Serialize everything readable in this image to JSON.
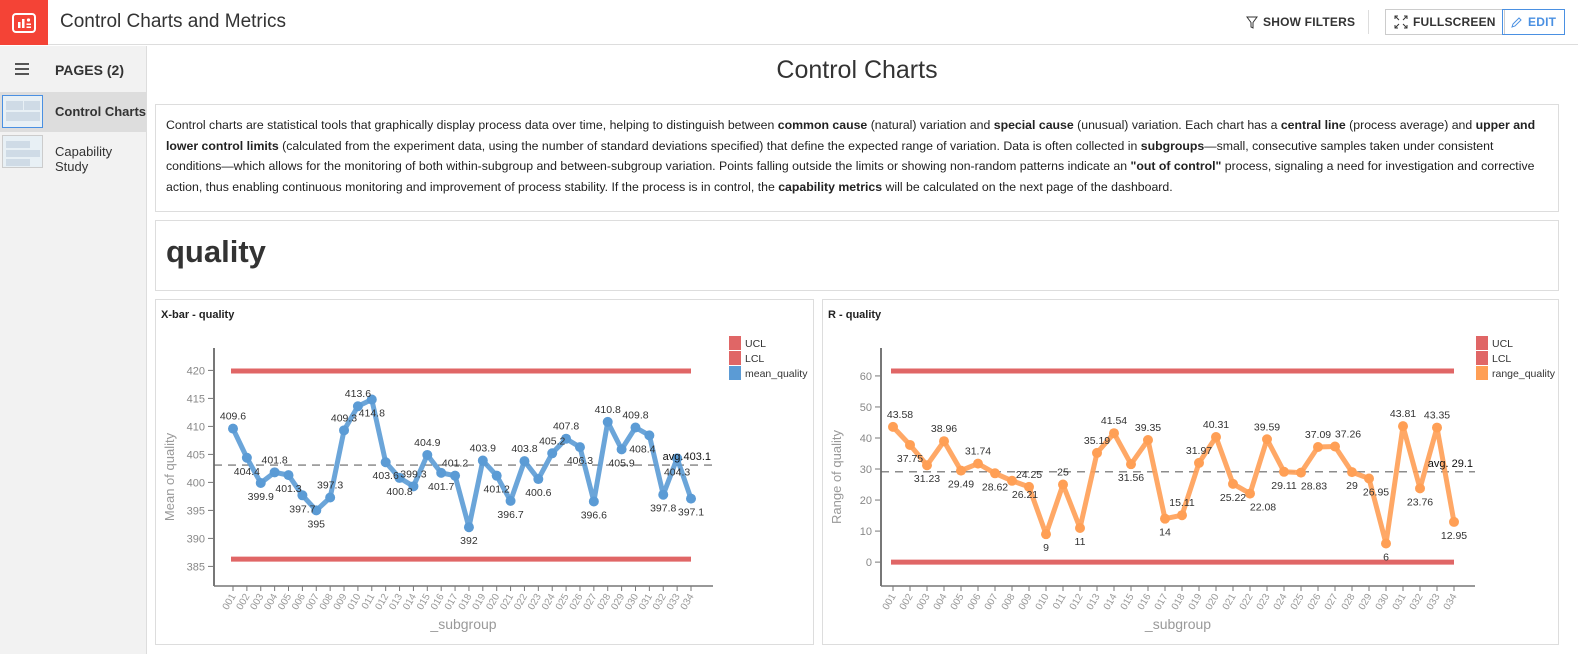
{
  "app": {
    "title": "Control Charts and Metrics",
    "show_filters": "SHOW FILTERS",
    "fullscreen": "FULLSCREEN",
    "edit": "EDIT",
    "brand_color": "#f44336",
    "accent_color": "#4a90e2"
  },
  "sidebar": {
    "header": "PAGES (2)",
    "pages": [
      {
        "label": "Control Charts",
        "active": true
      },
      {
        "label": "Capability Study",
        "active": false
      }
    ]
  },
  "page": {
    "title": "Control Charts",
    "section_title": "quality"
  },
  "description": [
    {
      "t": "Control charts are statistical tools that graphically display process data over time, helping to distinguish between "
    },
    {
      "t": "common cause",
      "b": true
    },
    {
      "t": " (natural) variation and "
    },
    {
      "t": "special cause",
      "b": true
    },
    {
      "t": " (unusual) variation. Each chart has a "
    },
    {
      "t": "central line",
      "b": true
    },
    {
      "t": " (process average) and "
    },
    {
      "t": "upper and lower control limits",
      "b": true
    },
    {
      "t": " (calculated from the experiment data, using the number of standard deviations specified) that define the expected range of variation. Data is often collected in "
    },
    {
      "t": "subgroups",
      "b": true
    },
    {
      "t": "—small, consecutive samples taken under consistent conditions—which allows for the monitoring of both within-subgroup and between-subgroup variation. Points falling outside the limits or showing non-random patterns indicate an "
    },
    {
      "t": "\"out of control\"",
      "b": true
    },
    {
      "t": " process, signaling a need for investigation and corrective action, thus enabling continuous monitoring and improvement of process stability. If the process is in control, the "
    },
    {
      "t": "capability metrics",
      "b": true
    },
    {
      "t": " will be calculated on the next page of the dashboard."
    }
  ],
  "chart_data": [
    {
      "type": "line",
      "title": "X-bar - quality",
      "xlabel": "_subgroup",
      "ylabel": "Mean of quality",
      "categories": [
        "001",
        "002",
        "003",
        "004",
        "005",
        "006",
        "007",
        "008",
        "009",
        "010",
        "011",
        "012",
        "013",
        "014",
        "015",
        "016",
        "017",
        "018",
        "019",
        "020",
        "021",
        "022",
        "023",
        "024",
        "025",
        "026",
        "027",
        "028",
        "029",
        "030",
        "031",
        "032",
        "033",
        "034"
      ],
      "series": [
        {
          "name": "mean_quality",
          "color": "#5b9bd5",
          "values": [
            409.6,
            404.4,
            399.9,
            401.8,
            401.3,
            397.7,
            395.0,
            397.3,
            409.3,
            413.6,
            414.8,
            403.6,
            400.8,
            399.3,
            404.9,
            401.7,
            401.2,
            392.0,
            403.9,
            401.2,
            396.7,
            403.8,
            400.6,
            405.2,
            407.8,
            406.3,
            396.6,
            410.8,
            405.9,
            409.8,
            408.4,
            397.8,
            404.3,
            397.1
          ]
        }
      ],
      "ucl": {
        "name": "UCL",
        "value": 419.9,
        "color": "#e06666"
      },
      "lcl": {
        "name": "LCL",
        "value": 386.3,
        "color": "#e06666"
      },
      "average": {
        "label": "avg.403.1",
        "value": 403.1
      },
      "yticks": [
        385,
        390,
        395,
        400,
        405,
        410,
        415,
        420
      ],
      "ylim": [
        381.5,
        424
      ],
      "legend": "top-right",
      "grid": false
    },
    {
      "type": "line",
      "title": "R - quality",
      "xlabel": "_subgroup",
      "ylabel": "Range of quality",
      "categories": [
        "001",
        "002",
        "003",
        "004",
        "005",
        "006",
        "007",
        "008",
        "009",
        "010",
        "011",
        "012",
        "013",
        "014",
        "015",
        "016",
        "017",
        "018",
        "019",
        "020",
        "021",
        "022",
        "023",
        "024",
        "025",
        "026",
        "027",
        "028",
        "029",
        "030",
        "031",
        "032",
        "033",
        "034"
      ],
      "series": [
        {
          "name": "range_quality",
          "color": "#ff9f55",
          "values": [
            43.58,
            37.75,
            31.23,
            38.96,
            29.49,
            31.74,
            28.62,
            26.21,
            24.25,
            9,
            25,
            11,
            35.19,
            41.54,
            31.56,
            39.35,
            14,
            15.11,
            31.97,
            40.31,
            25.22,
            22.08,
            39.59,
            29.11,
            28.83,
            37.09,
            37.26,
            29,
            26.95,
            6,
            43.81,
            23.76,
            43.35,
            12.95
          ]
        }
      ],
      "ucl": {
        "name": "UCL",
        "value": 61.6,
        "color": "#e06666"
      },
      "lcl": {
        "name": "LCL",
        "value": 0,
        "color": "#e06666"
      },
      "average": {
        "label": "avg. 29.1",
        "value": 29.1
      },
      "yticks": [
        0,
        10,
        20,
        30,
        40,
        50,
        60
      ],
      "ylim": [
        -7.7,
        69
      ],
      "legend": "top-right",
      "grid": false
    }
  ]
}
